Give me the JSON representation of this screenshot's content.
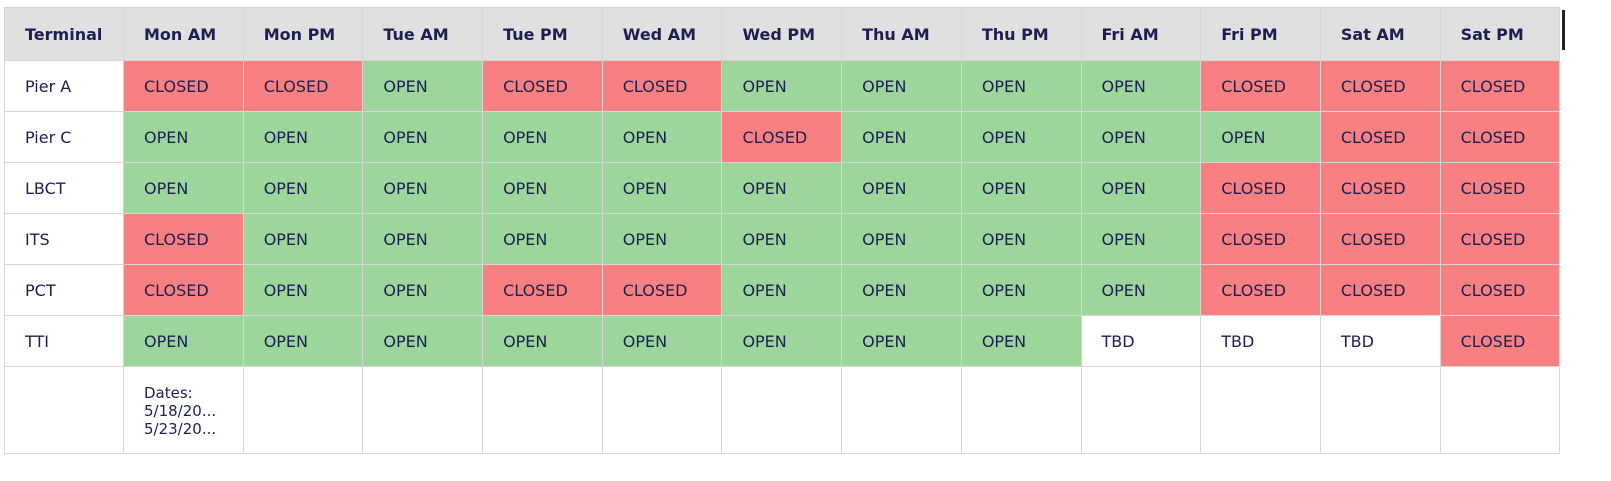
{
  "table": {
    "headers": [
      "Terminal",
      "Mon AM",
      "Mon PM",
      "Tue AM",
      "Tue PM",
      "Wed AM",
      "Wed PM",
      "Thu AM",
      "Thu PM",
      "Fri AM",
      "Fri PM",
      "Sat AM",
      "Sat PM"
    ],
    "rows": [
      {
        "terminal": "Pier A",
        "cells": [
          "CLOSED",
          "CLOSED",
          "OPEN",
          "CLOSED",
          "CLOSED",
          "OPEN",
          "OPEN",
          "OPEN",
          "OPEN",
          "CLOSED",
          "CLOSED",
          "CLOSED"
        ]
      },
      {
        "terminal": "Pier C",
        "cells": [
          "OPEN",
          "OPEN",
          "OPEN",
          "OPEN",
          "OPEN",
          "CLOSED",
          "OPEN",
          "OPEN",
          "OPEN",
          "OPEN",
          "CLOSED",
          "CLOSED"
        ]
      },
      {
        "terminal": "LBCT",
        "cells": [
          "OPEN",
          "OPEN",
          "OPEN",
          "OPEN",
          "OPEN",
          "OPEN",
          "OPEN",
          "OPEN",
          "OPEN",
          "CLOSED",
          "CLOSED",
          "CLOSED"
        ]
      },
      {
        "terminal": "ITS",
        "cells": [
          "CLOSED",
          "OPEN",
          "OPEN",
          "OPEN",
          "OPEN",
          "OPEN",
          "OPEN",
          "OPEN",
          "OPEN",
          "CLOSED",
          "CLOSED",
          "CLOSED"
        ]
      },
      {
        "terminal": "PCT",
        "cells": [
          "CLOSED",
          "OPEN",
          "OPEN",
          "CLOSED",
          "CLOSED",
          "OPEN",
          "OPEN",
          "OPEN",
          "OPEN",
          "CLOSED",
          "CLOSED",
          "CLOSED"
        ]
      },
      {
        "terminal": "TTI",
        "cells": [
          "OPEN",
          "OPEN",
          "OPEN",
          "OPEN",
          "OPEN",
          "OPEN",
          "OPEN",
          "OPEN",
          "TBD",
          "TBD",
          "TBD",
          "CLOSED"
        ]
      }
    ],
    "notes": "Dates:\n5/18/20...\n5/23/20..."
  },
  "colors": {
    "open": "#9dd69b",
    "closed": "#f98080",
    "header": "#e0e0e0",
    "text": "#1c1f52"
  }
}
